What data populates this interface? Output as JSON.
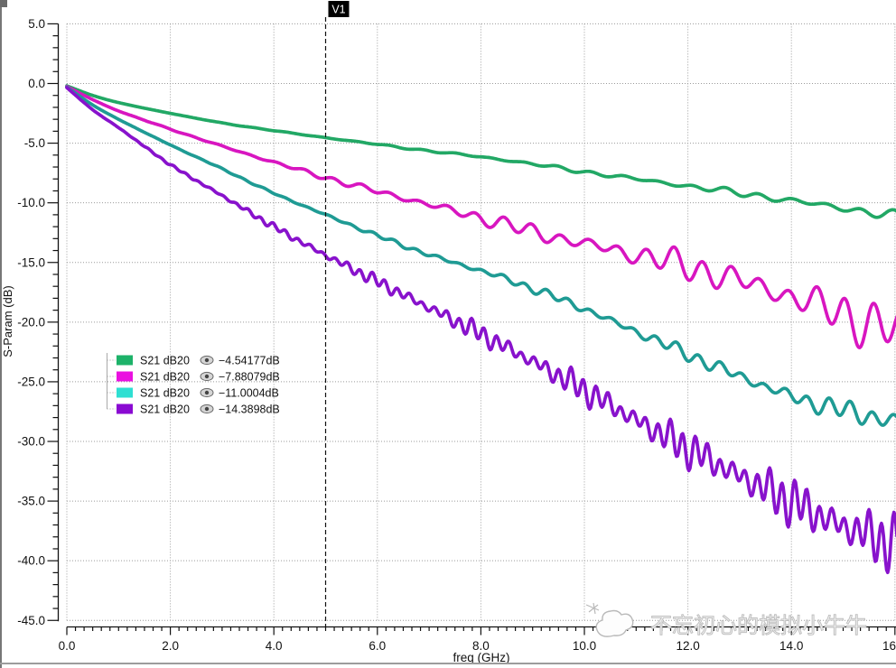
{
  "chart_data": {
    "type": "line",
    "title": "",
    "xlabel": "freq (GHz)",
    "ylabel": "S-Param (dB)",
    "xlim": [
      0,
      16
    ],
    "ylim": [
      -45,
      5
    ],
    "grid": "dotted",
    "x_tick_labels": [
      "0.0",
      "2.0",
      "4.0",
      "6.0",
      "8.0",
      "10.0",
      "12.0",
      "14.0",
      "16"
    ],
    "y_tick_labels": [
      "5.0",
      "0.0",
      "-5.0",
      "-10.0",
      "-15.0",
      "-20.0",
      "-25.0",
      "-30.0",
      "-35.0",
      "-40.0",
      "-45.0"
    ],
    "x_major_step": 2,
    "x_minor_per_major": 12,
    "y_major_step": 5,
    "y_minor_step": 1,
    "marker": {
      "name": "V1",
      "freq": 5.0
    },
    "legend_position": "left-middle",
    "series": [
      {
        "name": "S21 dB20",
        "curve_color": "#22a865",
        "swatch_color": "#1db269",
        "marker_readout": "−4.54177dB",
        "points": [
          [
            0,
            -0.2
          ],
          [
            0.5,
            -1.0
          ],
          [
            1,
            -1.6
          ],
          [
            2,
            -2.5
          ],
          [
            3,
            -3.3
          ],
          [
            4,
            -3.95
          ],
          [
            5,
            -4.54
          ],
          [
            6,
            -5.1
          ],
          [
            7,
            -5.65
          ],
          [
            8,
            -6.15
          ],
          [
            9,
            -6.75
          ],
          [
            10,
            -7.4
          ],
          [
            11,
            -8.0
          ],
          [
            12,
            -8.6
          ],
          [
            13,
            -9.2
          ],
          [
            14,
            -9.8
          ],
          [
            15,
            -10.45
          ],
          [
            16,
            -11.1
          ]
        ],
        "model": {
          "ripple_amp": 0.45,
          "ripple_pow": 2,
          "ripple_period": 0.65,
          "beat_period": 3.1,
          "beat_phase": 0.5,
          "phase": 1.2
        }
      },
      {
        "name": "S21 dB20",
        "curve_color": "#d816c0",
        "swatch_color": "#ea10e0",
        "marker_readout": "−7.88079dB",
        "points": [
          [
            0,
            -0.25
          ],
          [
            0.5,
            -1.35
          ],
          [
            1,
            -2.3
          ],
          [
            2,
            -3.82
          ],
          [
            3,
            -5.25
          ],
          [
            4,
            -6.6
          ],
          [
            5,
            -7.88
          ],
          [
            6,
            -9.05
          ],
          [
            7,
            -10.15
          ],
          [
            8,
            -11.25
          ],
          [
            9,
            -12.45
          ],
          [
            10,
            -13.4
          ],
          [
            11,
            -14.35
          ],
          [
            12,
            -15.35
          ],
          [
            13,
            -16.5
          ],
          [
            14,
            -17.9
          ],
          [
            15,
            -19.3
          ],
          [
            16,
            -20.7
          ]
        ],
        "model": {
          "ripple_amp": 2.3,
          "ripple_pow": 2,
          "ripple_period": 0.55,
          "beat_period": 3.4,
          "beat_phase": 4.7,
          "phase": 2.6
        }
      },
      {
        "name": "S21 dB20",
        "curve_color": "#1f9b94",
        "swatch_color": "#2edfd2",
        "marker_readout": "−11.0004dB",
        "points": [
          [
            0,
            -0.3
          ],
          [
            0.5,
            -1.8
          ],
          [
            1,
            -3.0
          ],
          [
            2,
            -5.15
          ],
          [
            3,
            -7.15
          ],
          [
            4,
            -9.2
          ],
          [
            5,
            -11.0
          ],
          [
            6,
            -12.75
          ],
          [
            7,
            -14.35
          ],
          [
            8.5,
            -16.4
          ],
          [
            10,
            -18.9
          ],
          [
            11,
            -20.8
          ],
          [
            12.7,
            -24.0
          ],
          [
            14,
            -26.2
          ],
          [
            15,
            -27.4
          ],
          [
            16,
            -28.3
          ]
        ],
        "model": {
          "ripple_amp": 1.0,
          "ripple_pow": 1.8,
          "ripple_period": 0.42,
          "beat_period": 2.9,
          "beat_phase": 0.7,
          "phase": 4.4
        }
      },
      {
        "name": "S21 dB20",
        "curve_color": "#8812cc",
        "swatch_color": "#8a0ad2",
        "marker_readout": "−14.3898dB",
        "points": [
          [
            0,
            -0.35
          ],
          [
            0.5,
            -2.2
          ],
          [
            1,
            -3.7
          ],
          [
            2,
            -6.8
          ],
          [
            3,
            -9.4
          ],
          [
            4,
            -12.0
          ],
          [
            5,
            -14.39
          ],
          [
            6,
            -16.6
          ],
          [
            7,
            -18.8
          ],
          [
            8,
            -21.0
          ],
          [
            9,
            -23.3
          ],
          [
            10,
            -25.7
          ],
          [
            11,
            -28.2
          ],
          [
            12,
            -30.6
          ],
          [
            12.7,
            -32.2
          ],
          [
            13.5,
            -34.0
          ],
          [
            14.4,
            -35.9
          ],
          [
            15,
            -37.1
          ],
          [
            16,
            -38.6
          ]
        ],
        "model": {
          "ripple_amp": 2.6,
          "ripple_pow": 1.6,
          "ripple_period": 0.24,
          "beat_period": 2.0,
          "beat_phase": 1.88,
          "phase": 1.04
        }
      }
    ],
    "watermark": {
      "text": "不忘初心的模拟小牛牛"
    }
  }
}
